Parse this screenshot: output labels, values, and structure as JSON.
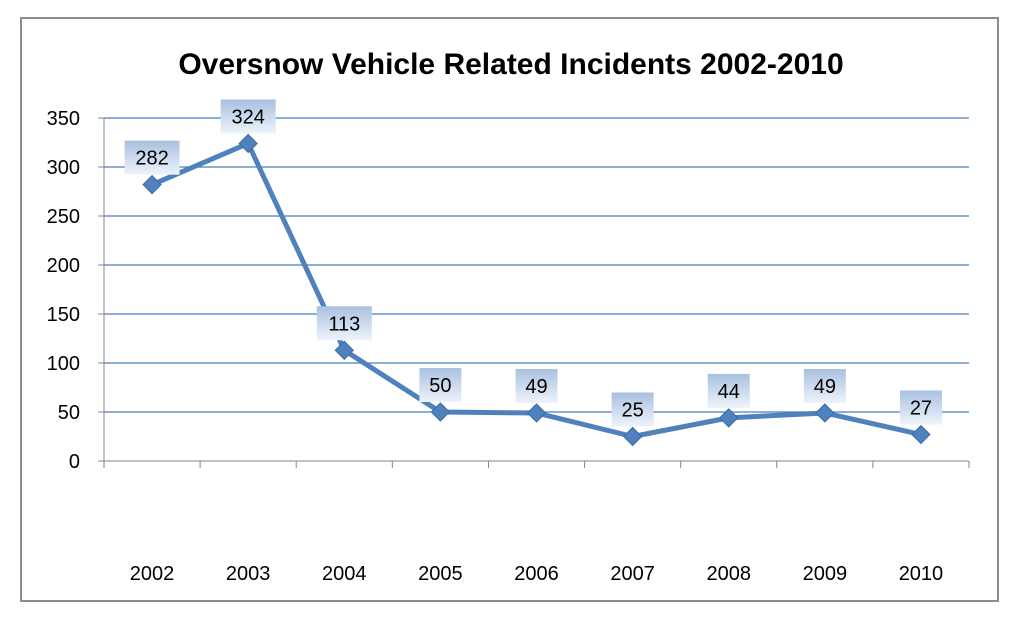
{
  "chart_data": {
    "type": "line",
    "title": "Oversnow Vehicle Related Incidents 2002-2010",
    "xlabel": "",
    "ylabel": "",
    "categories": [
      "2002",
      "2003",
      "2004",
      "2005",
      "2006",
      "2007",
      "2008",
      "2009",
      "2010"
    ],
    "series": [
      {
        "values": [
          282,
          324,
          113,
          50,
          49,
          25,
          44,
          49,
          27
        ]
      }
    ],
    "ylim": [
      0,
      350
    ],
    "yticks": [
      0,
      50,
      100,
      150,
      200,
      250,
      300,
      350
    ],
    "grid": true,
    "legend": "none",
    "data_labels": true,
    "colors": {
      "line": "#4f81bd",
      "gridline": "#4a7ebb",
      "label_fill_top": "#a9c0e0",
      "label_fill_bottom": "#eef3fa"
    }
  }
}
